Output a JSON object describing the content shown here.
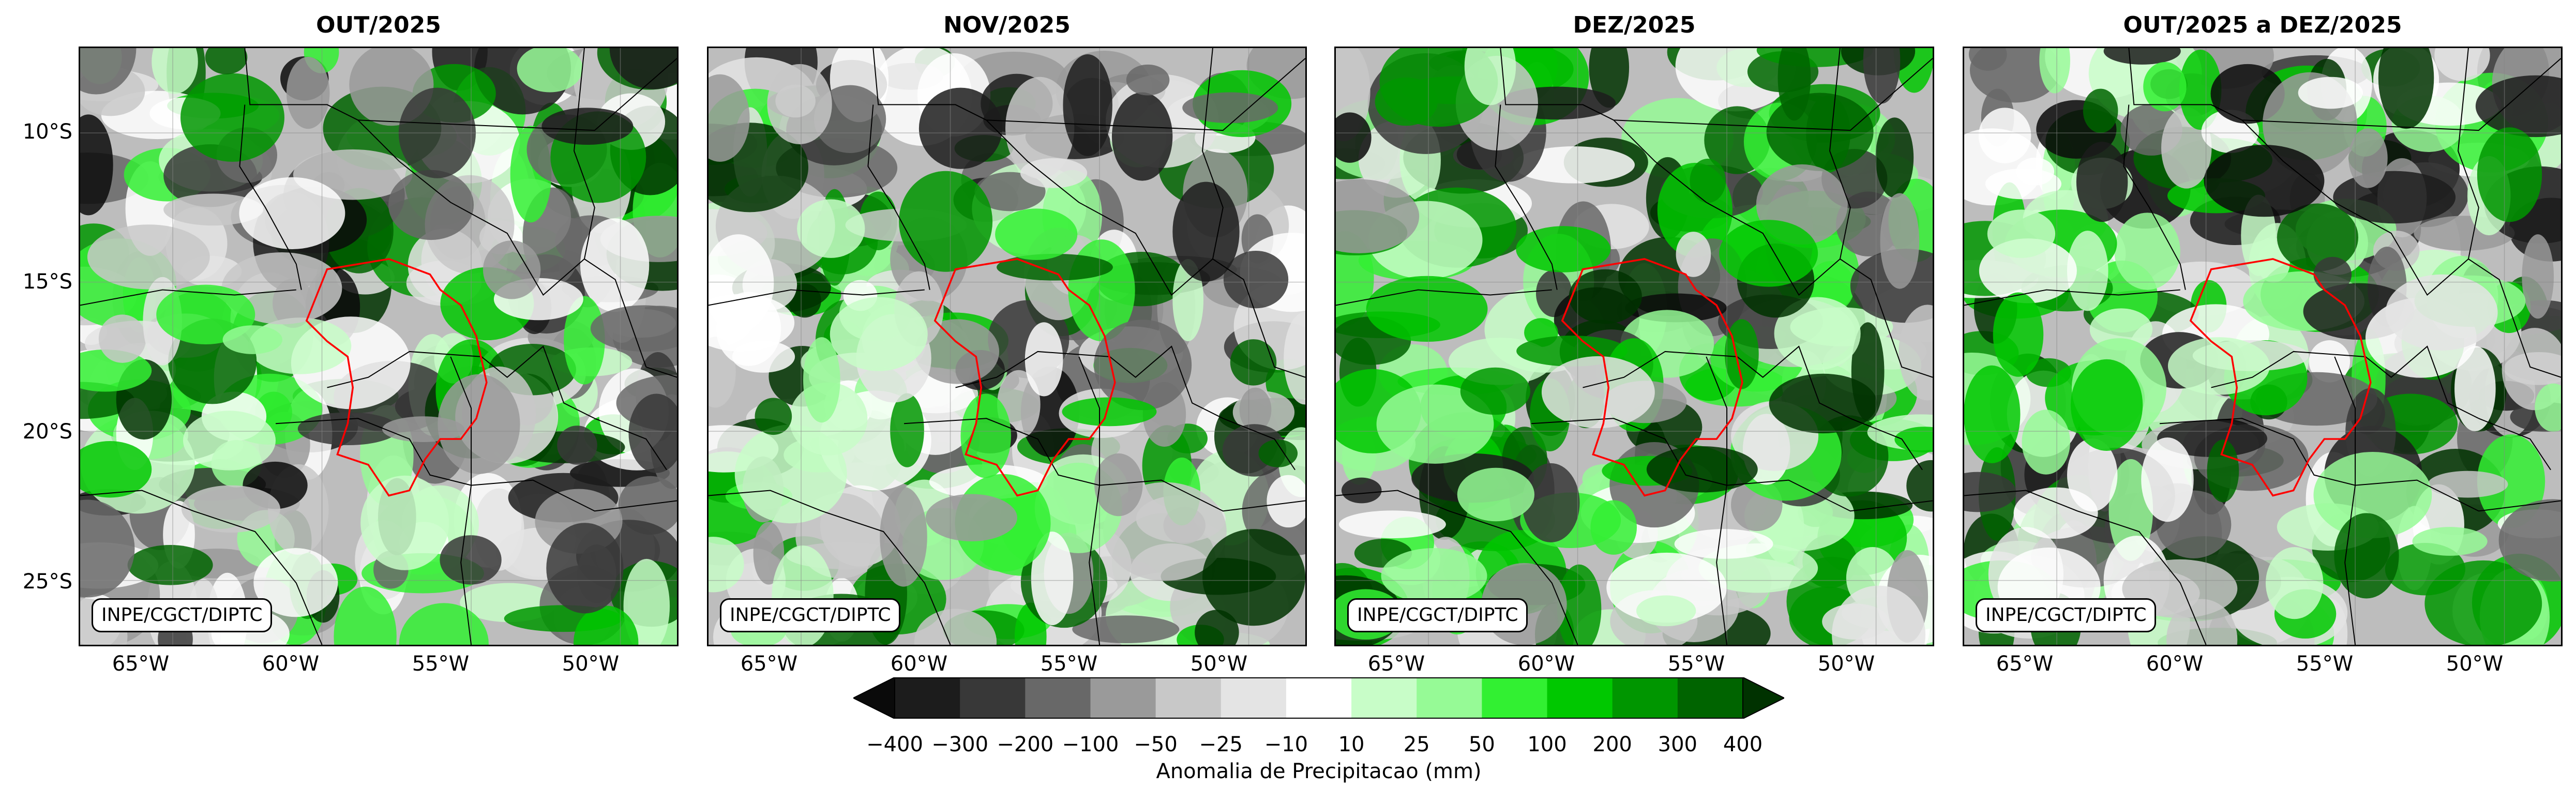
{
  "panels": [
    {
      "title": "OUT/2025",
      "credit": "INPE/CGCT/DIPTC",
      "wet": 0.3,
      "seed": 11
    },
    {
      "title": "NOV/2025",
      "credit": "INPE/CGCT/DIPTC",
      "wet": 0.35,
      "seed": 23
    },
    {
      "title": "DEZ/2025",
      "credit": "INPE/CGCT/DIPTC",
      "wet": 0.62,
      "seed": 37
    },
    {
      "title": "OUT/2025 a DEZ/2025",
      "credit": "INPE/CGCT/DIPTC",
      "wet": 0.42,
      "seed": 51
    }
  ],
  "lat_ticks": [
    "10°S",
    "15°S",
    "20°S",
    "25°S"
  ],
  "lon_ticks": [
    "65°W",
    "60°W",
    "55°W",
    "50°W"
  ],
  "colorbar": {
    "title": "Anomalia de Precipitacao (mm)",
    "ticks": [
      "−400",
      "−300",
      "−200",
      "−100",
      "−50",
      "−25",
      "−10",
      "10",
      "25",
      "50",
      "100",
      "200",
      "300",
      "400"
    ],
    "colors": [
      "#0a0a0a",
      "#1c1c1c",
      "#383838",
      "#686868",
      "#9a9a9a",
      "#c8c8c8",
      "#e4e4e4",
      "#ffffff",
      "#c8fdc8",
      "#96fa96",
      "#32f032",
      "#00c800",
      "#009600",
      "#006400",
      "#003200"
    ]
  },
  "region_outline_color": "#ff0000"
}
